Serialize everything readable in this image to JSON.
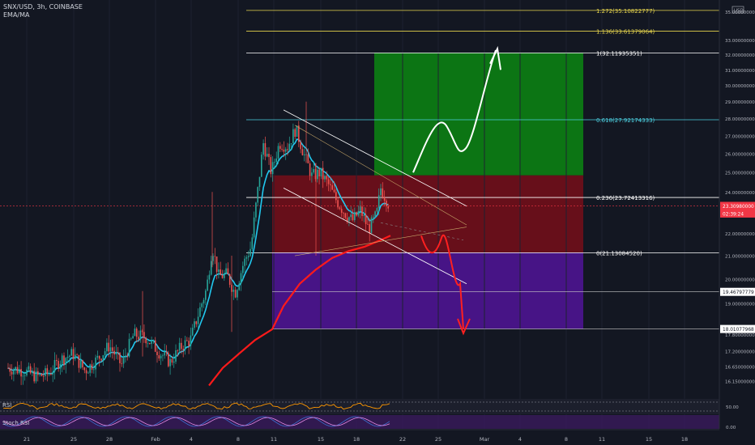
{
  "header": {
    "title": "SNX/USD, 3h, COINBASE",
    "indicator": "EMA/MA"
  },
  "colors": {
    "background": "#131722",
    "bull_candle": "#26a69a",
    "bear_candle": "#ef5350",
    "ema_line": "#21c9f0",
    "ma_line": "#ff1a1a",
    "rsi_line": "#ff9800",
    "stoch_k": "#3d6fd1",
    "stoch_d": "#e58ae6",
    "target_zone": "#0c7a14",
    "risk_zone": "#6b0f1a",
    "lower_zone": "#4a148c",
    "fib_0_618": "#4dd0e1",
    "fib_ext": "#e6d44d",
    "current_price_tag": "#f23645"
  },
  "chart_data": {
    "type": "candlestick",
    "y_axis": {
      "scale": "log",
      "range": [
        15.85,
        35.4
      ],
      "ticks": [
        "35.00000000",
        "33.00000000",
        "32.00000000",
        "31.00000000",
        "30.00000000",
        "29.00000000",
        "28.00000000",
        "27.00000000",
        "26.00000000",
        "25.00000000",
        "24.00000000",
        "23.00000000",
        "22.00000000",
        "21.00000000",
        "20.00000000",
        "19.00000000",
        "18.00000000",
        "17.80000000",
        "17.20000000",
        "16.65000000",
        "16.15000000"
      ],
      "currency_badge": "USD"
    },
    "x_axis": {
      "ticks": [
        "21",
        "25",
        "28",
        "Feb",
        "4",
        "8",
        "11",
        "15",
        "18",
        "22",
        "25",
        "Mar",
        "4",
        "8",
        "11",
        "15",
        "18"
      ]
    },
    "fib_levels": [
      {
        "ratio": "1.272",
        "price": 35.10822777,
        "label": "1.272(35.10822777)",
        "color": "#e6d44d"
      },
      {
        "ratio": "1.136",
        "price": 33.61379064,
        "label": "1.136(33.61379064)",
        "color": "#e6d44d"
      },
      {
        "ratio": "1",
        "price": 32.11935351,
        "label": "1(32.11935351)",
        "color": "#ffffff"
      },
      {
        "ratio": "0.618",
        "price": 27.92174333,
        "label": "0.618(27.92174333)",
        "color": "#4dd0e1"
      },
      {
        "ratio": "0.236",
        "price": 23.72413316,
        "label": "0.236(23.72413316)",
        "color": "#ffffff"
      },
      {
        "ratio": "0",
        "price": 21.1308452,
        "label": "0(21.13084520)",
        "color": "#ffffff"
      }
    ],
    "price_tags": [
      {
        "label": "23.30980000",
        "price": 23.3098,
        "kind": "current"
      },
      {
        "label": "02:39:24",
        "price": 22.94,
        "kind": "countdown"
      },
      {
        "label": "19.46797779",
        "price": 19.46797779,
        "kind": "level"
      },
      {
        "label": "18.01077968",
        "price": 18.01077968,
        "kind": "level"
      }
    ],
    "zones": [
      {
        "name": "target",
        "price_top": 32.119,
        "price_bottom": 24.85
      },
      {
        "name": "risk",
        "price_top": 24.85,
        "price_bottom": 21.13
      },
      {
        "name": "lower",
        "price_top": 21.13,
        "price_bottom": 18.01
      }
    ],
    "rsi": {
      "label": "RSI",
      "ticks": [
        "50.00"
      ],
      "band": [
        30,
        70
      ]
    },
    "stoch_rsi": {
      "label": "Stoch RSI",
      "ticks": [
        "0.00"
      ]
    }
  }
}
